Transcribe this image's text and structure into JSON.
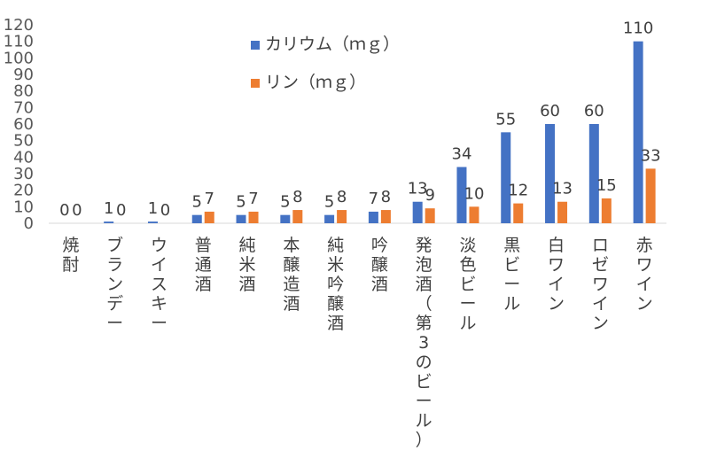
{
  "chart_data": {
    "type": "bar",
    "title": "",
    "xlabel": "",
    "ylabel": "",
    "ylim": [
      0,
      120
    ],
    "yticks": [
      0,
      10,
      20,
      30,
      40,
      50,
      60,
      70,
      80,
      90,
      100,
      110,
      120
    ],
    "grid": false,
    "legend_position": "top-center",
    "categories": [
      "焼酎",
      "ブランデー",
      "ウイスキー",
      "普通酒",
      "純米酒",
      "本醸造酒",
      "純米吟醸酒",
      "吟醸酒",
      "発泡酒（第3のビール）",
      "淡色ビール",
      "黒ビール",
      "白ワイン",
      "ロゼワイン",
      "赤ワイン"
    ],
    "series": [
      {
        "name": "カリウム（ｍｇ）",
        "color": "#4472C4",
        "values": [
          0,
          1,
          1,
          5,
          5,
          5,
          5,
          7,
          13,
          34,
          55,
          60,
          60,
          110
        ]
      },
      {
        "name": "リン（ｍｇ）",
        "color": "#ED7D31",
        "values": [
          0,
          0,
          0,
          7,
          7,
          8,
          8,
          8,
          9,
          10,
          12,
          13,
          15,
          33
        ]
      }
    ]
  }
}
